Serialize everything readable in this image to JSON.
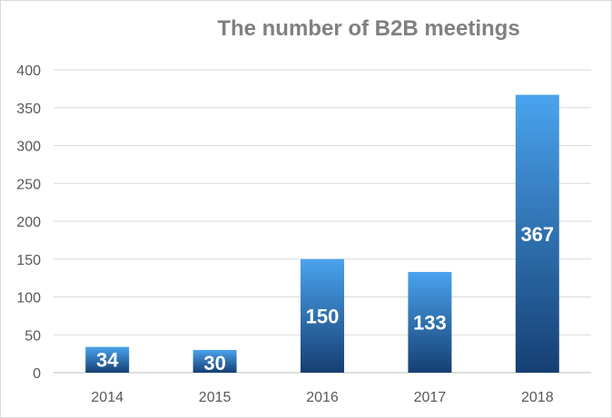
{
  "chart_data": {
    "type": "bar",
    "title": "The number of B2B meetings",
    "xlabel": "",
    "ylabel": "",
    "categories": [
      "2014",
      "2015",
      "2016",
      "2017",
      "2018"
    ],
    "values": [
      34,
      30,
      150,
      133,
      367
    ],
    "data_labels": [
      "34",
      "30",
      "150",
      "133",
      "367"
    ],
    "ylim": [
      0,
      400
    ],
    "yticks": [
      "0",
      "50",
      "100",
      "150",
      "200",
      "250",
      "300",
      "350",
      "400"
    ],
    "grid": true,
    "legend": "none",
    "colors": {
      "bar_top": "#4aa3ee",
      "bar_bottom": "#153f73",
      "gridline": "#d9d9d9",
      "axis": "#bfbfbf",
      "title": "#808080",
      "tick_text": "#595959",
      "data_label": "#ffffff"
    }
  }
}
